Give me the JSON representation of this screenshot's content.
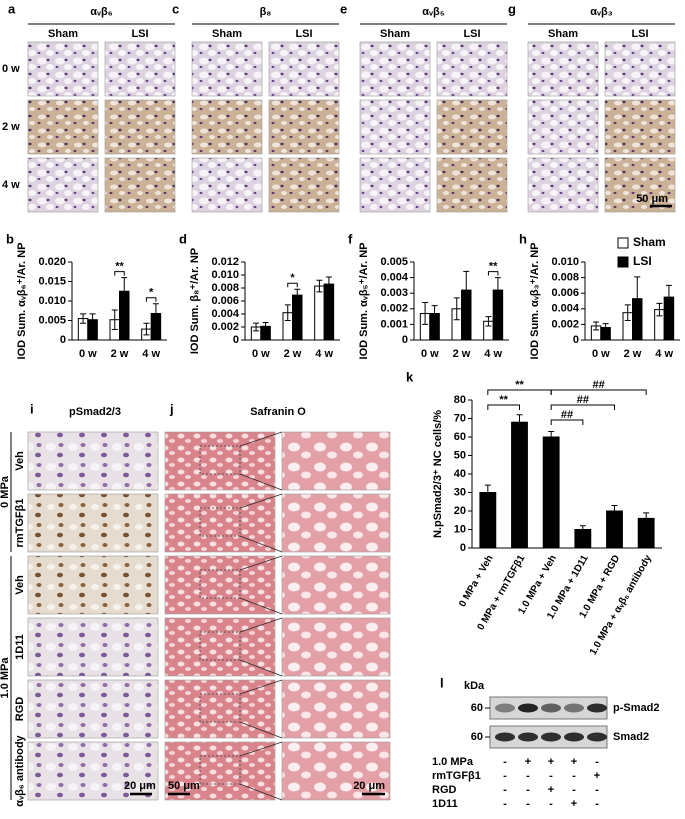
{
  "image_panels": [
    {
      "letter": "a",
      "title": "αᵥβ₆"
    },
    {
      "letter": "c",
      "title": "β₈"
    },
    {
      "letter": "e",
      "title": "αᵥβ₅"
    },
    {
      "letter": "g",
      "title": "αᵥβ₃"
    }
  ],
  "image_columns": [
    "Sham",
    "LSI"
  ],
  "image_rows": [
    "0 w",
    "2 w",
    "4 w"
  ],
  "scale_bar_top": "50 μm",
  "chart_data": [
    {
      "type": "bar",
      "letter": "b",
      "ylabel": "IOD Sum. αᵥβ₆⁺/Ar. NP",
      "categories": [
        "0 w",
        "2 w",
        "4 w"
      ],
      "series": [
        {
          "color": "#ffffff",
          "values": [
            0.0055,
            0.0052,
            0.0028
          ],
          "errors": [
            0.0012,
            0.0025,
            0.0015
          ]
        },
        {
          "color": "#000000",
          "values": [
            0.0052,
            0.0125,
            0.0068
          ],
          "errors": [
            0.0015,
            0.0035,
            0.0025
          ]
        }
      ],
      "ylim": [
        0,
        0.02
      ],
      "yticks": [
        0,
        0.005,
        {
          "value": 0.01,
          "label": "0.010"
        },
        0.015,
        {
          "value": 0.02,
          "label": "0.020"
        }
      ],
      "annotations": [
        "**",
        "*"
      ]
    },
    {
      "type": "bar",
      "letter": "d",
      "ylabel": "IOD Sum. β₈⁺/Ar. NP",
      "categories": [
        "0 w",
        "2 w",
        "4 w"
      ],
      "series": [
        {
          "color": "#ffffff",
          "values": [
            0.002,
            0.0042,
            0.0083
          ],
          "errors": [
            0.0006,
            0.0012,
            0.0009
          ]
        },
        {
          "color": "#000000",
          "values": [
            0.0021,
            0.0069,
            0.0086
          ],
          "errors": [
            0.0006,
            0.0009,
            0.0011
          ]
        }
      ],
      "ylim": [
        0,
        0.012
      ],
      "yticks": [
        0,
        0.002,
        0.004,
        0.006,
        0.008,
        {
          "value": 0.01,
          "label": "0.010"
        },
        0.012
      ],
      "annotations": [
        "*"
      ]
    },
    {
      "type": "bar",
      "letter": "f",
      "ylabel": "IOD Sum. αᵥβ₅⁺/Ar. NP",
      "categories": [
        "0 w",
        "2 w",
        "4 w"
      ],
      "series": [
        {
          "color": "#ffffff",
          "values": [
            0.0017,
            0.002,
            0.0012
          ],
          "errors": [
            0.0007,
            0.0007,
            0.0003
          ]
        },
        {
          "color": "#000000",
          "values": [
            0.0017,
            0.0032,
            0.0032
          ],
          "errors": [
            0.0005,
            0.0012,
            0.0008
          ]
        }
      ],
      "ylim": [
        0,
        0.005
      ],
      "yticks": [
        0,
        0.001,
        0.002,
        0.003,
        0.004,
        0.005
      ],
      "annotations": [
        "**"
      ]
    },
    {
      "type": "bar",
      "letter": "h",
      "ylabel": "IOD Sum. αᵥβ₃⁺/Ar. NP",
      "categories": [
        "0 w",
        "2 w",
        "4 w"
      ],
      "legend": "upper right",
      "series": [
        {
          "name": "Sham",
          "color": "#ffffff",
          "values": [
            0.0018,
            0.0035,
            0.0039
          ],
          "errors": [
            0.0005,
            0.001,
            0.0008
          ]
        },
        {
          "name": "LSI",
          "color": "#000000",
          "values": [
            0.0016,
            0.0053,
            0.0055
          ],
          "errors": [
            0.0005,
            0.0028,
            0.0015
          ]
        }
      ],
      "ylim": [
        0,
        0.01
      ],
      "yticks": [
        0,
        0.002,
        0.004,
        0.006,
        0.008,
        {
          "value": 0.01,
          "label": "0.010"
        }
      ],
      "annotations": []
    },
    {
      "type": "bar",
      "letter": "k",
      "ylabel": "N.pSmad2/3⁺ NC cells/%",
      "categories": [
        "0 MPa + Veh",
        "0 MPa + rmTGFβ1",
        "1.0 MPa + Veh",
        "1.0 MPa + 1D11",
        "1.0 MPa + RGD",
        "1.0 MPa + αᵥβ₆ antibody"
      ],
      "values": [
        30,
        68,
        60,
        10,
        20,
        16
      ],
      "errors": [
        4,
        4,
        3,
        2,
        3,
        3
      ],
      "color": "#000000",
      "ylim": [
        0,
        80
      ],
      "yticks": [
        0,
        10,
        20,
        30,
        40,
        50,
        60,
        70,
        80
      ],
      "annotations": [
        "**",
        "**",
        "##",
        "##",
        "##"
      ]
    }
  ],
  "lower": {
    "i_letter": "i",
    "i_title": "pSmad2/3",
    "j_letter": "j",
    "j_title": "Safranin O",
    "groups": [
      {
        "label": "0 MPa",
        "rows": [
          "Veh",
          "rmTGFβ1"
        ]
      },
      {
        "label": "1.0 MPa",
        "rows": [
          "Veh",
          "1D11",
          "RGD",
          "αᵥβ₆ antibody"
        ]
      }
    ],
    "scale_i": "20 μm",
    "scale_j_left": "50 μm",
    "scale_j_right": "20 μm"
  },
  "blot": {
    "letter": "l",
    "unit": "kDa",
    "markers": [
      "60",
      "60"
    ],
    "bands": [
      "p-Smad2",
      "Smad2"
    ],
    "conditions": [
      {
        "label": "1.0 MPa",
        "signs": [
          "-",
          "+",
          "+",
          "+",
          "-"
        ]
      },
      {
        "label": "rmTGFβ1",
        "signs": [
          "-",
          "-",
          "-",
          "-",
          "+"
        ]
      },
      {
        "label": "RGD",
        "signs": [
          "-",
          "-",
          "+",
          "-",
          "-"
        ]
      },
      {
        "label": "1D11",
        "signs": [
          "-",
          "-",
          "-",
          "+",
          "-"
        ]
      }
    ]
  }
}
